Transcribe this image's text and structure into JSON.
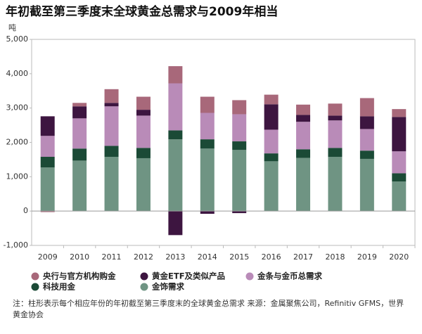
{
  "chart_data": {
    "type": "stacked-bar",
    "title": "年初截至第三季度末全球黄金总需求与2009年相当",
    "y_unit": "吨",
    "categories": [
      "2009",
      "2010",
      "2011",
      "2012",
      "2013",
      "2014",
      "2015",
      "2016",
      "2017",
      "2018",
      "2019",
      "2020"
    ],
    "series": [
      {
        "name": "央行与官方机构购金",
        "color": "#a8687a",
        "values": [
          -30,
          100,
          400,
          380,
          500,
          470,
          410,
          280,
          300,
          350,
          530,
          230
        ]
      },
      {
        "name": "黄金ETF及类似产品",
        "color": "#3d1540",
        "values": [
          570,
          350,
          100,
          170,
          -700,
          -80,
          -60,
          740,
          200,
          140,
          370,
          1000
        ]
      },
      {
        "name": "金条与金币总需求",
        "color": "#b98bb8",
        "values": [
          610,
          880,
          1150,
          940,
          1370,
          770,
          790,
          690,
          800,
          800,
          630,
          640
        ]
      },
      {
        "name": "科技用金",
        "color": "#1b4a36",
        "values": [
          310,
          350,
          320,
          300,
          260,
          270,
          250,
          230,
          250,
          260,
          240,
          240
        ]
      },
      {
        "name": "金饰需求",
        "color": "#6f9483",
        "values": [
          1270,
          1470,
          1580,
          1540,
          2090,
          1820,
          1780,
          1450,
          1550,
          1580,
          1520,
          860
        ]
      }
    ],
    "ylim": [
      -1000,
      5000
    ],
    "yticks": [
      {
        "value": -1000,
        "label": "-1,000"
      },
      0,
      {
        "value": 1000,
        "label": "1,000"
      },
      {
        "value": 2000,
        "label": "2,000"
      },
      {
        "value": 3000,
        "label": "3,000"
      },
      {
        "value": 4000,
        "label": "4,000"
      },
      {
        "value": 5000,
        "label": "5,000"
      }
    ],
    "note": "注：柱形表示每个相应年份的年初截至第三季度末的全球黄金总需求 来源：金属聚焦公司，Refinitiv GFMS，世界黄金协会"
  }
}
